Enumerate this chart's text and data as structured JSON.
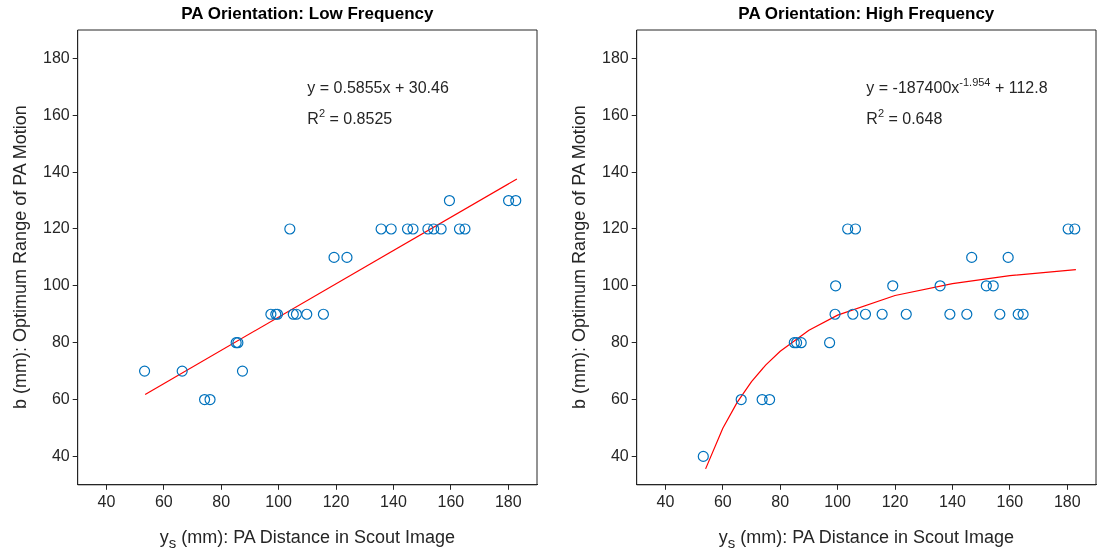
{
  "chart_data": [
    {
      "type": "scatter",
      "title": "PA Orientation: Low Frequency",
      "xlabel": "y$_{s}$ (mm): PA Distance in Scout Image",
      "ylabel": "b (mm): Optimum Range of PA Motion",
      "xlim": [
        30,
        190
      ],
      "ylim": [
        30,
        190
      ],
      "xticks": [
        40,
        60,
        80,
        100,
        120,
        140,
        160,
        180
      ],
      "yticks": [
        40,
        60,
        80,
        100,
        120,
        140,
        160,
        180
      ],
      "marker": "circle",
      "annotations": [
        "y = 0.5855x + 30.46",
        "R$^{2}$ = 0.8525"
      ],
      "series": [
        {
          "color": "#0072bd",
          "x": [
            159.5,
            180.1,
            182.6,
            103.9,
            135.7,
            139.2,
            144.9,
            146.8,
            152,
            154,
            156.6,
            163,
            164.9,
            119.3,
            123.8,
            97.3,
            99,
            99.6,
            105.1,
            106.2,
            109.8,
            115.6,
            85.2,
            85.8,
            53.3,
            66.4,
            87.4,
            74.2,
            76.1
          ],
          "values": [
            130,
            130,
            130,
            120,
            120,
            120,
            120,
            120,
            120,
            120,
            120,
            120,
            120,
            110,
            110,
            90,
            90,
            90,
            90,
            90,
            90,
            90,
            80,
            80,
            70,
            70,
            70,
            60,
            60
          ]
        },
        {
          "type": "line",
          "color": "#ff0000",
          "marker": "none",
          "x": [
            53.5,
            183
          ],
          "values": [
            61.8,
            137.6
          ]
        }
      ]
    },
    {
      "type": "scatter",
      "title": "PA Orientation: High Frequency",
      "xlabel": "y$_{s}$ (mm): PA Distance in Scout Image",
      "ylabel": "b (mm): Optimum Range of PA Motion",
      "xlim": [
        30,
        190
      ],
      "ylim": [
        30,
        190
      ],
      "xticks": [
        40,
        60,
        80,
        100,
        120,
        140,
        160,
        180
      ],
      "yticks": [
        40,
        60,
        80,
        100,
        120,
        140,
        160,
        180
      ],
      "marker": "circle",
      "annotations": [
        "y = -187400x$^{-1.954}$ + 112.8",
        "R$^{2}$ = 0.648"
      ],
      "series": [
        {
          "color": "#0072bd",
          "x": [
            103.5,
            106.2,
            180.3,
            182.6,
            146.7,
            159.4,
            99.3,
            119.2,
            135.7,
            151.8,
            154.2,
            99.1,
            105.3,
            109.7,
            115.5,
            123.9,
            139.1,
            145,
            156.5,
            162.9,
            164.6,
            84.9,
            85.7,
            87.3,
            97.2,
            66.4,
            73.7,
            76.3,
            53.2
          ],
          "values": [
            120,
            120,
            120,
            120,
            110,
            110,
            100,
            100,
            100,
            100,
            100,
            90,
            90,
            90,
            90,
            90,
            90,
            90,
            90,
            90,
            90,
            80,
            80,
            80,
            80,
            60,
            60,
            60,
            40
          ]
        },
        {
          "type": "line",
          "color": "#ff0000",
          "marker": "none",
          "x": [
            54,
            60,
            65,
            70,
            75,
            80,
            90,
            100,
            120,
            140,
            160,
            183
          ],
          "values": [
            35.6,
            49.9,
            59,
            66.3,
            72.2,
            77,
            84.4,
            89.7,
            96.6,
            100.8,
            103.6,
            105.7
          ]
        }
      ]
    }
  ]
}
